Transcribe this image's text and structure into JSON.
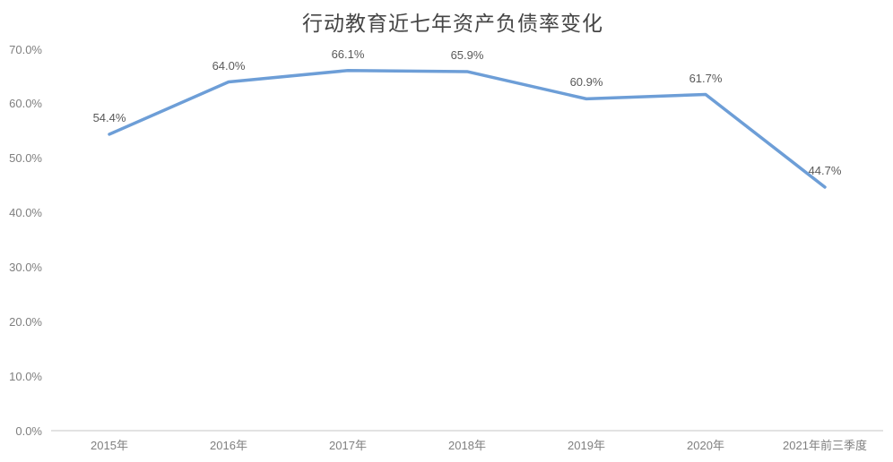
{
  "title": "行动教育近七年资产负债率变化",
  "chart_data": {
    "type": "line",
    "categories": [
      "2015年",
      "2016年",
      "2017年",
      "2018年",
      "2019年",
      "2020年",
      "2021年前三季度"
    ],
    "values": [
      54.4,
      64.0,
      66.1,
      65.9,
      60.9,
      61.7,
      44.7
    ],
    "point_labels": [
      "54.4%",
      "64.0%",
      "66.1%",
      "65.9%",
      "60.9%",
      "61.7%",
      "44.7%"
    ],
    "yticks": [
      {
        "value": 0,
        "label": "0.0%"
      },
      {
        "value": 10,
        "label": "10.0%"
      },
      {
        "value": 20,
        "label": "20.0%"
      },
      {
        "value": 30,
        "label": "30.0%"
      },
      {
        "value": 40,
        "label": "40.0%"
      },
      {
        "value": 50,
        "label": "50.0%"
      },
      {
        "value": 60,
        "label": "60.0%"
      },
      {
        "value": 70,
        "label": "70.0%"
      }
    ],
    "ylim": [
      0,
      70
    ],
    "xlabel": "",
    "ylabel": "",
    "grid": false,
    "legend": "none",
    "line_color": "#6D9ED7",
    "axis_line_color": "#d9d9d9",
    "label_color": "#595959",
    "tick_color": "#7f7f7f",
    "title_color": "#454545",
    "background_color": "#ffffff"
  }
}
